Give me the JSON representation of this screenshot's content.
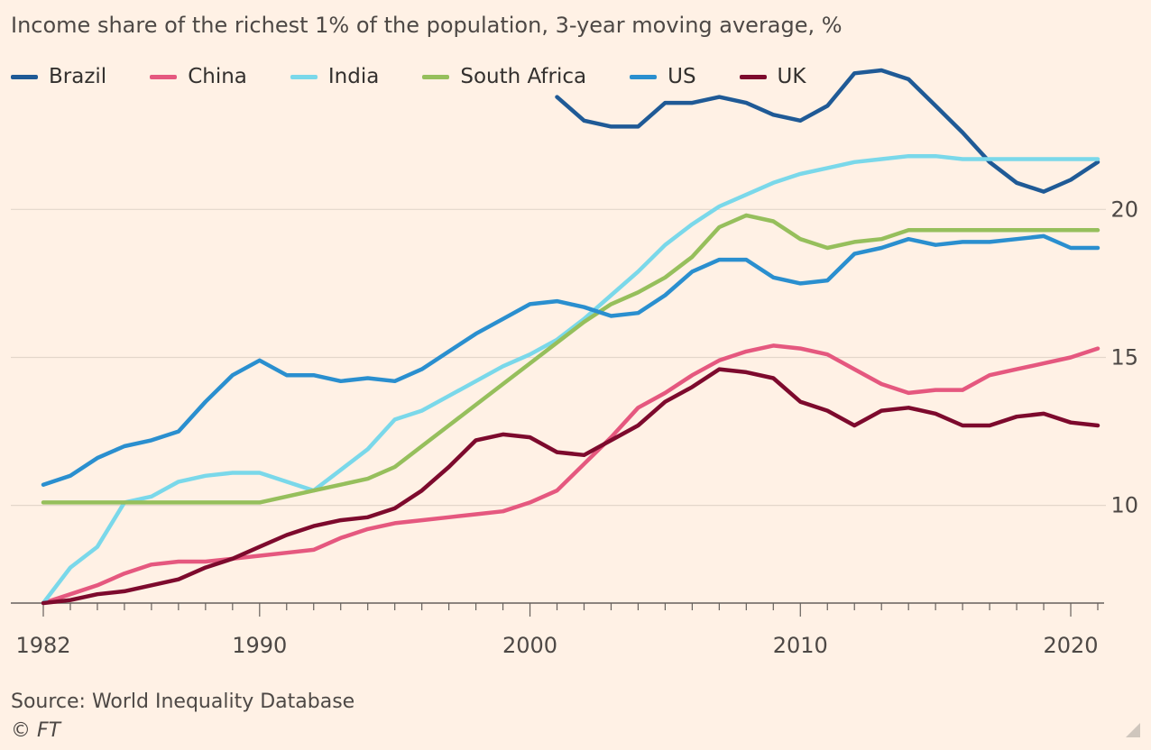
{
  "title": "Income share of the richest 1% of the population, 3-year moving average, %",
  "source": "Source: World Inequality Database",
  "credit": "© FT",
  "chart_data": {
    "type": "line",
    "title": "Income share of the richest 1% of the population, 3-year moving average, %",
    "xlabel": "",
    "ylabel": "",
    "xlim": [
      1982,
      2021
    ],
    "ylim": [
      6.7,
      24
    ],
    "x_ticks": [
      1982,
      1990,
      2000,
      2010,
      2020
    ],
    "y_ticks": [
      10,
      15,
      20
    ],
    "grid": "horizontal",
    "legend": "top-left",
    "series": [
      {
        "name": "Brazil",
        "color": "#1f5a96",
        "x": [
          2001,
          2002,
          2003,
          2004,
          2005,
          2006,
          2007,
          2008,
          2009,
          2010,
          2011,
          2012,
          2013,
          2014,
          2015,
          2016,
          2017,
          2018,
          2019,
          2020,
          2021
        ],
        "values": [
          23.8,
          23.0,
          22.8,
          22.8,
          23.6,
          23.6,
          23.8,
          23.6,
          23.2,
          23.0,
          23.5,
          24.6,
          24.7,
          24.4,
          23.5,
          22.6,
          21.6,
          20.9,
          20.6,
          21.0,
          21.6
        ]
      },
      {
        "name": "China",
        "color": "#e5587f",
        "x": [
          1982,
          1983,
          1984,
          1985,
          1986,
          1987,
          1988,
          1989,
          1990,
          1991,
          1992,
          1993,
          1994,
          1995,
          1996,
          1997,
          1998,
          1999,
          2000,
          2001,
          2002,
          2003,
          2004,
          2005,
          2006,
          2007,
          2008,
          2009,
          2010,
          2011,
          2012,
          2013,
          2014,
          2015,
          2016,
          2017,
          2018,
          2019,
          2020,
          2021
        ],
        "values": [
          6.7,
          7.0,
          7.3,
          7.7,
          8.0,
          8.1,
          8.1,
          8.2,
          8.3,
          8.4,
          8.5,
          8.9,
          9.2,
          9.4,
          9.5,
          9.6,
          9.7,
          9.8,
          10.1,
          10.5,
          11.4,
          12.3,
          13.3,
          13.8,
          14.4,
          14.9,
          15.2,
          15.4,
          15.3,
          15.1,
          14.6,
          14.1,
          13.8,
          13.9,
          13.9,
          14.4,
          14.6,
          14.8,
          15.0,
          15.3
        ]
      },
      {
        "name": "India",
        "color": "#7ad8ea",
        "x": [
          1982,
          1983,
          1984,
          1985,
          1986,
          1987,
          1988,
          1989,
          1990,
          1991,
          1992,
          1993,
          1994,
          1995,
          1996,
          1997,
          1998,
          1999,
          2000,
          2001,
          2002,
          2003,
          2004,
          2005,
          2006,
          2007,
          2008,
          2009,
          2010,
          2011,
          2012,
          2013,
          2014,
          2015,
          2016,
          2017,
          2018,
          2019,
          2020,
          2021
        ],
        "values": [
          6.7,
          7.9,
          8.6,
          10.1,
          10.3,
          10.8,
          11.0,
          11.1,
          11.1,
          10.8,
          10.5,
          11.2,
          11.9,
          12.9,
          13.2,
          13.7,
          14.2,
          14.7,
          15.1,
          15.6,
          16.3,
          17.1,
          17.9,
          18.8,
          19.5,
          20.1,
          20.5,
          20.9,
          21.2,
          21.4,
          21.6,
          21.7,
          21.8,
          21.8,
          21.7,
          21.7,
          21.7,
          21.7,
          21.7,
          21.7
        ]
      },
      {
        "name": "South Africa",
        "color": "#96bf5c",
        "x": [
          1982,
          1983,
          1984,
          1985,
          1986,
          1987,
          1988,
          1989,
          1990,
          1991,
          1992,
          1993,
          1994,
          1995,
          1996,
          1997,
          1998,
          1999,
          2000,
          2001,
          2002,
          2003,
          2004,
          2005,
          2006,
          2007,
          2008,
          2009,
          2010,
          2011,
          2012,
          2013,
          2014,
          2015,
          2016,
          2017,
          2018,
          2019,
          2020,
          2021
        ],
        "values": [
          10.1,
          10.1,
          10.1,
          10.1,
          10.1,
          10.1,
          10.1,
          10.1,
          10.1,
          10.3,
          10.5,
          10.7,
          10.9,
          11.3,
          12.0,
          12.7,
          13.4,
          14.1,
          14.8,
          15.5,
          16.2,
          16.8,
          17.2,
          17.7,
          18.4,
          19.4,
          19.8,
          19.6,
          19.0,
          18.7,
          18.9,
          19.0,
          19.3,
          19.3,
          19.3,
          19.3,
          19.3,
          19.3,
          19.3,
          19.3
        ]
      },
      {
        "name": "US",
        "color": "#2a8fcf",
        "x": [
          1982,
          1983,
          1984,
          1985,
          1986,
          1987,
          1988,
          1989,
          1990,
          1991,
          1992,
          1993,
          1994,
          1995,
          1996,
          1997,
          1998,
          1999,
          2000,
          2001,
          2002,
          2003,
          2004,
          2005,
          2006,
          2007,
          2008,
          2009,
          2010,
          2011,
          2012,
          2013,
          2014,
          2015,
          2016,
          2017,
          2018,
          2019,
          2020,
          2021
        ],
        "values": [
          10.7,
          11.0,
          11.6,
          12.0,
          12.2,
          12.5,
          13.5,
          14.4,
          14.9,
          14.4,
          14.4,
          14.2,
          14.3,
          14.2,
          14.6,
          15.2,
          15.8,
          16.3,
          16.8,
          16.9,
          16.7,
          16.4,
          16.5,
          17.1,
          17.9,
          18.3,
          18.3,
          17.7,
          17.5,
          17.6,
          18.5,
          18.7,
          19.0,
          18.8,
          18.9,
          18.9,
          19.0,
          19.1,
          18.7,
          18.7
        ]
      },
      {
        "name": "UK",
        "color": "#7d0a2d",
        "x": [
          1982,
          1983,
          1984,
          1985,
          1986,
          1987,
          1988,
          1989,
          1990,
          1991,
          1992,
          1993,
          1994,
          1995,
          1996,
          1997,
          1998,
          1999,
          2000,
          2001,
          2002,
          2003,
          2004,
          2005,
          2006,
          2007,
          2008,
          2009,
          2010,
          2011,
          2012,
          2013,
          2014,
          2015,
          2016,
          2017,
          2018,
          2019,
          2020,
          2021
        ],
        "values": [
          6.7,
          6.8,
          7.0,
          7.1,
          7.3,
          7.5,
          7.9,
          8.2,
          8.6,
          9.0,
          9.3,
          9.5,
          9.6,
          9.9,
          10.5,
          11.3,
          12.2,
          12.4,
          12.3,
          11.8,
          11.7,
          12.2,
          12.7,
          13.5,
          14.0,
          14.6,
          14.5,
          14.3,
          13.5,
          13.2,
          12.7,
          13.2,
          13.3,
          13.1,
          12.7,
          12.7,
          13.0,
          13.1,
          12.8,
          12.7
        ]
      }
    ]
  }
}
